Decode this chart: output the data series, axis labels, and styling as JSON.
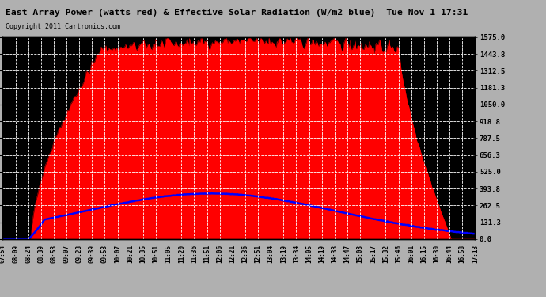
{
  "title": "East Array Power (watts red) & Effective Solar Radiation (W/m2 blue)  Tue Nov 1 17:31",
  "copyright": "Copyright 2011 Cartronics.com",
  "y_ticks": [
    0.0,
    131.3,
    262.5,
    393.8,
    525.0,
    656.3,
    787.5,
    918.8,
    1050.0,
    1181.3,
    1312.5,
    1443.8,
    1575.0
  ],
  "y_max": 1575.0,
  "x_labels": [
    "07:54",
    "08:09",
    "08:24",
    "08:39",
    "08:53",
    "09:07",
    "09:23",
    "09:39",
    "09:53",
    "10:07",
    "10:21",
    "10:35",
    "10:51",
    "11:05",
    "11:20",
    "11:36",
    "11:51",
    "12:06",
    "12:21",
    "12:36",
    "12:51",
    "13:04",
    "13:19",
    "13:34",
    "14:05",
    "14:19",
    "14:33",
    "14:47",
    "15:03",
    "15:17",
    "15:32",
    "15:46",
    "16:01",
    "16:15",
    "16:30",
    "16:44",
    "16:58",
    "17:13"
  ],
  "background_color": "#b0b0b0",
  "plot_bg_color": "#000000",
  "grid_color": "#ffffff",
  "red_color": "#ff0000",
  "blue_color": "#0000ff",
  "title_color": "#000000",
  "border_color": "#000000",
  "title_bg": "#ffffff"
}
